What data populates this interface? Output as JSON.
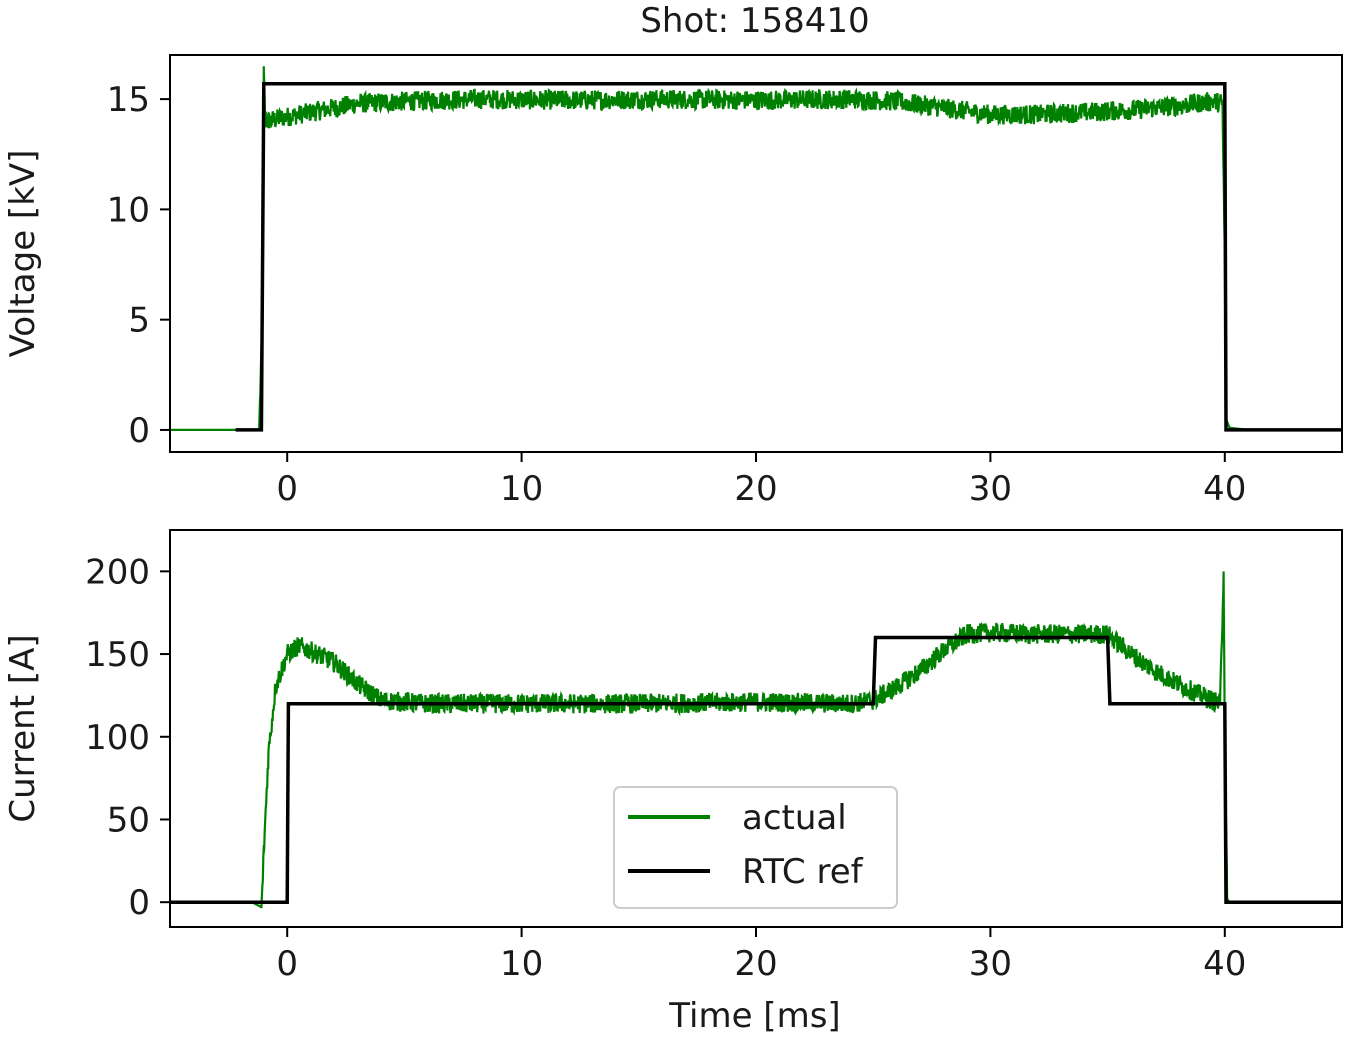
{
  "figure": {
    "title": "Shot: 158410",
    "xlabel": "Time [ms]"
  },
  "colors": {
    "actual": "#008000",
    "ref": "#000000",
    "axes": "#000000"
  },
  "chart_data": [
    {
      "type": "line",
      "panel": "top",
      "ylabel": "Voltage [kV]",
      "xlabel": "",
      "xlim": [
        -5,
        45
      ],
      "ylim": [
        -1,
        17
      ],
      "xticks": [
        0,
        10,
        20,
        30,
        40
      ],
      "yticks": [
        0,
        5,
        10,
        15
      ],
      "series": [
        {
          "name": "actual",
          "color": "#008000",
          "x": [
            -5,
            -1.2,
            -1.05,
            -1.0,
            -0.95,
            -0.9,
            0,
            1,
            2,
            3,
            5,
            8,
            12,
            16,
            20,
            24,
            26,
            28,
            30,
            32,
            34,
            36,
            38,
            39.5,
            39.9,
            40.0,
            40.05,
            40.2,
            41,
            45
          ],
          "y": [
            0,
            0,
            5,
            16.3,
            14.5,
            14.0,
            14.2,
            14.4,
            14.6,
            14.8,
            14.9,
            15.0,
            14.95,
            15.0,
            14.95,
            15.0,
            14.9,
            14.6,
            14.3,
            14.3,
            14.4,
            14.5,
            14.7,
            14.9,
            14.8,
            8.0,
            0.5,
            0.1,
            0,
            0
          ],
          "noise": 0.45
        },
        {
          "name": "ref",
          "color": "#000000",
          "x": [
            -2.2,
            -1.1,
            -1.0,
            40.0,
            40.05,
            45
          ],
          "y": [
            0,
            0,
            15.7,
            15.7,
            0,
            0
          ]
        }
      ]
    },
    {
      "type": "line",
      "panel": "bottom",
      "ylabel": "Current [A]",
      "xlabel": "Time [ms]",
      "xlim": [
        -5,
        45
      ],
      "ylim": [
        -15,
        225
      ],
      "xticks": [
        0,
        10,
        20,
        30,
        40
      ],
      "yticks": [
        0,
        50,
        100,
        150,
        200
      ],
      "legend": {
        "position": "lower-center",
        "entries": [
          {
            "label": "actual",
            "color": "#008000"
          },
          {
            "label": "RTC ref",
            "color": "#000000"
          }
        ]
      },
      "series": [
        {
          "name": "actual",
          "color": "#008000",
          "x": [
            -5,
            -1.5,
            -1.1,
            -1.0,
            -0.8,
            -0.5,
            0,
            0.5,
            1,
            2,
            3,
            4,
            6,
            10,
            15,
            20,
            24,
            25,
            26,
            27,
            28,
            29,
            30,
            32,
            34,
            35,
            36,
            37,
            38,
            39,
            39.8,
            39.95,
            40.0,
            40.1,
            40.2,
            41,
            45
          ],
          "y": [
            0,
            0,
            -3,
            30,
            90,
            130,
            150,
            155,
            152,
            145,
            132,
            122,
            120,
            120,
            120,
            121,
            120,
            122,
            130,
            140,
            152,
            162,
            163,
            162,
            162,
            162,
            150,
            140,
            132,
            125,
            120,
            200,
            100,
            2,
            0,
            0,
            0
          ],
          "noise": 6
        },
        {
          "name": "RTC ref",
          "color": "#000000",
          "x": [
            -5,
            0,
            0.05,
            25,
            25.1,
            35,
            35.1,
            40,
            40.05,
            45
          ],
          "y": [
            0,
            0,
            120,
            120,
            160,
            160,
            120,
            120,
            0,
            0
          ]
        }
      ]
    }
  ]
}
